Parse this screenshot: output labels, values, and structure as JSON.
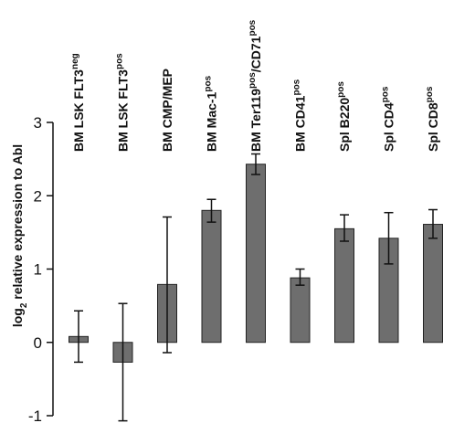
{
  "chart_data": {
    "type": "bar",
    "title": "",
    "xlabel": "",
    "ylabel": {
      "prefix": "log",
      "subscript": "2",
      "rest": " relative expression to Abl"
    },
    "ylim": [
      -1,
      3
    ],
    "yticks": [
      -1,
      0,
      1,
      2,
      3
    ],
    "grid": false,
    "legend": "none",
    "bar_color": "#6e6e6e",
    "categories": [
      {
        "parts": [
          {
            "t": "BM LSK FLT3"
          },
          {
            "t": "neg",
            "sup": true
          }
        ]
      },
      {
        "parts": [
          {
            "t": "BM LSK FLT3"
          },
          {
            "t": "pos",
            "sup": true
          }
        ]
      },
      {
        "parts": [
          {
            "t": "BM CMP/MEP"
          }
        ]
      },
      {
        "parts": [
          {
            "t": "BM Mac-1"
          },
          {
            "t": "pos",
            "sup": true
          }
        ]
      },
      {
        "parts": [
          {
            "t": "BM Ter119"
          },
          {
            "t": "pos",
            "sup": true
          },
          {
            "t": "/CD71"
          },
          {
            "t": "pos",
            "sup": true
          }
        ]
      },
      {
        "parts": [
          {
            "t": "BM CD41"
          },
          {
            "t": "pos",
            "sup": true
          }
        ]
      },
      {
        "parts": [
          {
            "t": "Spl B220"
          },
          {
            "t": "pos",
            "sup": true
          }
        ]
      },
      {
        "parts": [
          {
            "t": "Spl CD4"
          },
          {
            "t": "pos",
            "sup": true
          }
        ]
      },
      {
        "parts": [
          {
            "t": "Spl CD8"
          },
          {
            "t": "pos",
            "sup": true
          }
        ]
      }
    ],
    "values": [
      0.08,
      -0.27,
      0.79,
      1.8,
      2.43,
      0.88,
      1.55,
      1.42,
      1.61
    ],
    "error_low": [
      -0.27,
      -1.07,
      -0.14,
      1.64,
      2.29,
      0.78,
      1.38,
      1.07,
      1.42
    ],
    "error_high": [
      0.43,
      0.53,
      1.71,
      1.95,
      2.57,
      1.0,
      1.74,
      1.77,
      1.81
    ]
  }
}
